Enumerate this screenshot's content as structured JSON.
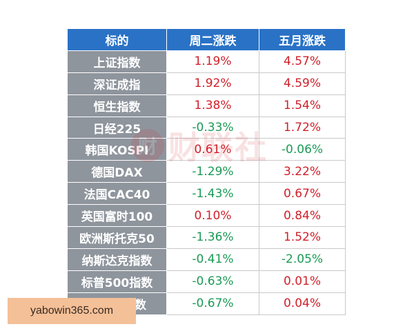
{
  "table": {
    "headers": [
      "标的",
      "周二涨跌",
      "五月涨跌"
    ],
    "rows": [
      {
        "name": "上证指数",
        "tue": "1.19%",
        "tue_dir": "up",
        "may": "4.57%",
        "may_dir": "up"
      },
      {
        "name": "深证成指",
        "tue": "1.92%",
        "tue_dir": "up",
        "may": "4.59%",
        "may_dir": "up"
      },
      {
        "name": "恒生指数",
        "tue": "1.38%",
        "tue_dir": "up",
        "may": "1.54%",
        "may_dir": "up"
      },
      {
        "name": "日经225",
        "tue": "-0.33%",
        "tue_dir": "down",
        "may": "1.72%",
        "may_dir": "up"
      },
      {
        "name": "韩国KOSPI",
        "tue": "0.61%",
        "tue_dir": "up",
        "may": "-0.06%",
        "may_dir": "down"
      },
      {
        "name": "德国DAX",
        "tue": "-1.29%",
        "tue_dir": "down",
        "may": "3.22%",
        "may_dir": "up"
      },
      {
        "name": "法国CAC40",
        "tue": "-1.43%",
        "tue_dir": "down",
        "may": "0.67%",
        "may_dir": "up"
      },
      {
        "name": "英国富时100",
        "tue": "0.10%",
        "tue_dir": "up",
        "may": "0.84%",
        "may_dir": "up"
      },
      {
        "name": "欧洲斯托克50",
        "tue": "-1.36%",
        "tue_dir": "down",
        "may": "1.52%",
        "may_dir": "up"
      },
      {
        "name": "纳斯达克指数",
        "tue": "-0.41%",
        "tue_dir": "down",
        "may": "-2.05%",
        "may_dir": "down"
      },
      {
        "name": "标普500指数",
        "tue": "-0.63%",
        "tue_dir": "down",
        "may": "0.01%",
        "may_dir": "up"
      },
      {
        "name": "道琼斯指数",
        "tue": "-0.67%",
        "tue_dir": "down",
        "may": "0.04%",
        "may_dir": "up"
      }
    ]
  },
  "watermark": {
    "text": "财联社",
    "badge": "财"
  },
  "site_label": "yabowin365.com",
  "colors": {
    "header_bg": "#2a72c6",
    "name_bg": "#8f959d",
    "up": "#d0202a",
    "down": "#1a9a55",
    "label_bg": "#f4c098"
  }
}
